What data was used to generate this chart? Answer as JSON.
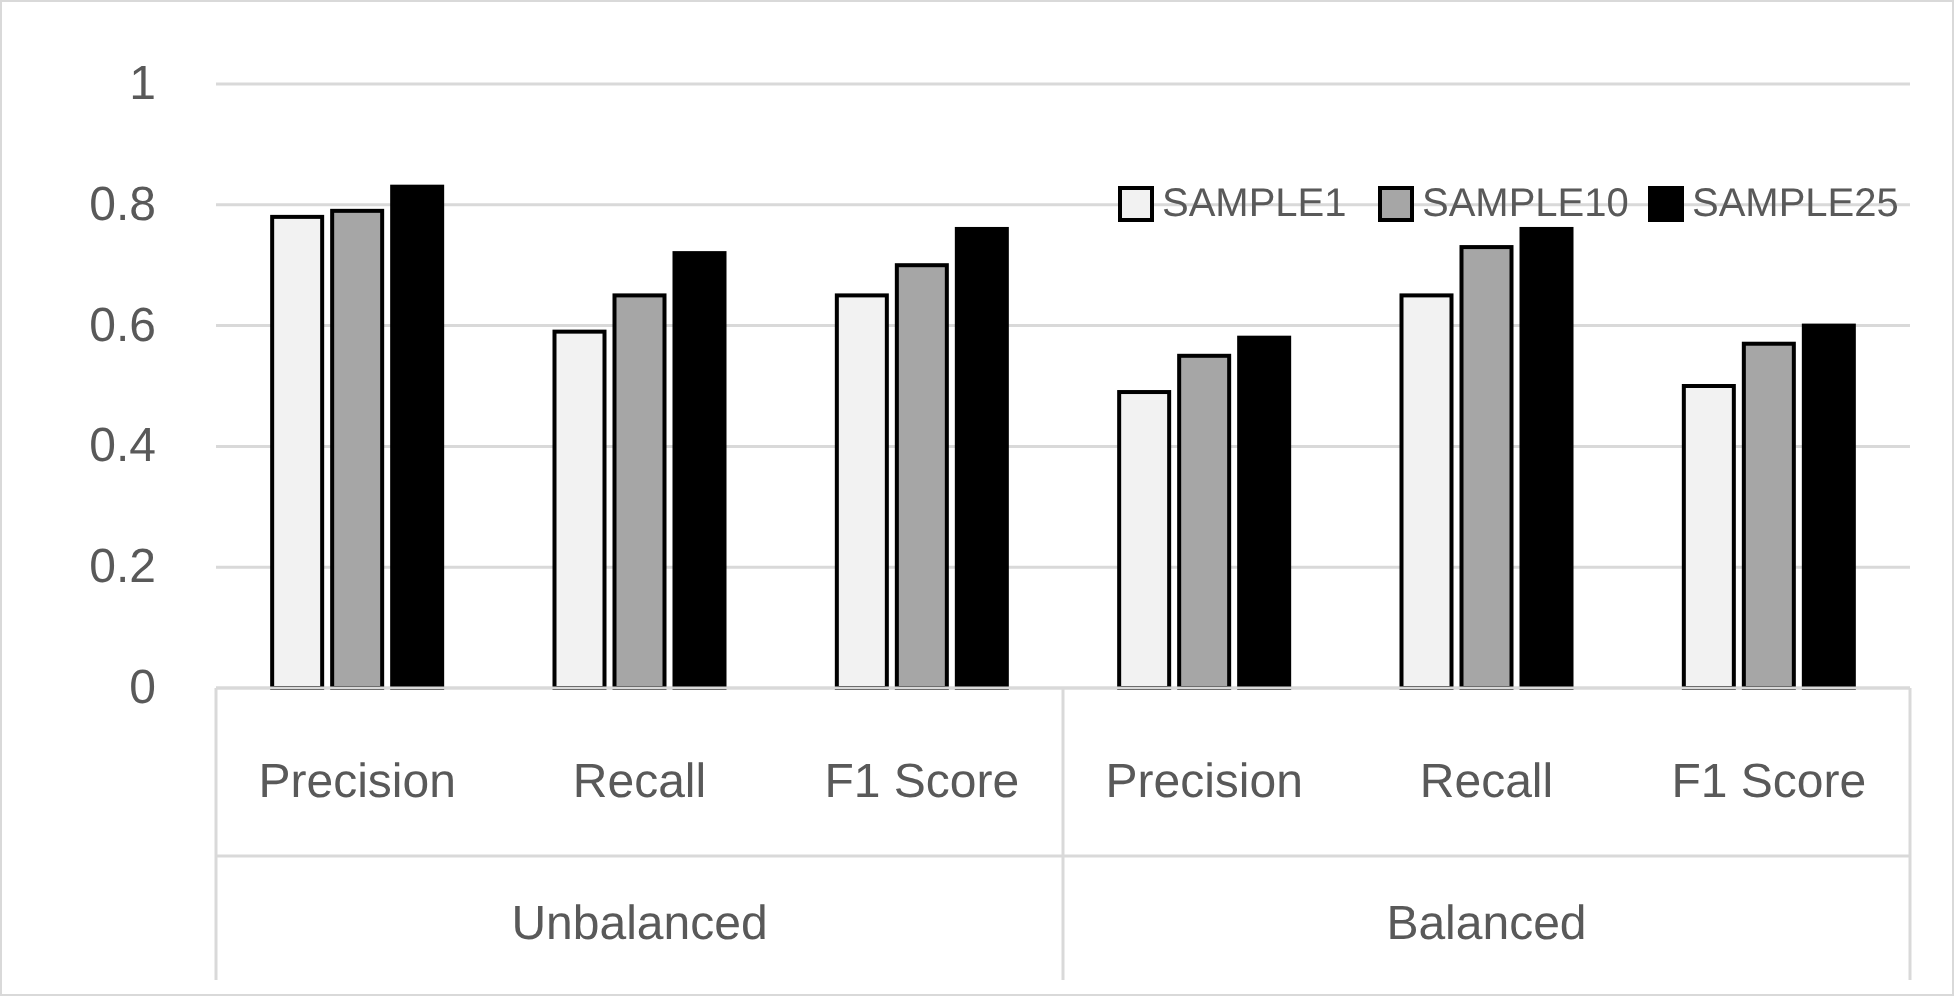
{
  "chart_data": {
    "type": "bar",
    "categories": [
      "Precision",
      "Recall",
      "F1 Score",
      "Precision",
      "Recall",
      "F1 Score"
    ],
    "series": [
      {
        "name": "SAMPLE1",
        "color": "#f2f2f2",
        "values": [
          0.78,
          0.59,
          0.65,
          0.49,
          0.65,
          0.5
        ]
      },
      {
        "name": "SAMPLE10",
        "color": "#a6a6a6",
        "values": [
          0.79,
          0.65,
          0.7,
          0.55,
          0.73,
          0.57
        ]
      },
      {
        "name": "SAMPLE25",
        "color": "#000000",
        "values": [
          0.83,
          0.72,
          0.76,
          0.58,
          0.76,
          0.6
        ]
      }
    ],
    "annotations": [
      "Unbalanced",
      "Balanced"
    ],
    "ylim": [
      0,
      1
    ],
    "yticks": [
      0,
      0.2,
      0.4,
      0.6,
      0.8,
      1
    ],
    "grid": "y",
    "legend": "top right"
  }
}
